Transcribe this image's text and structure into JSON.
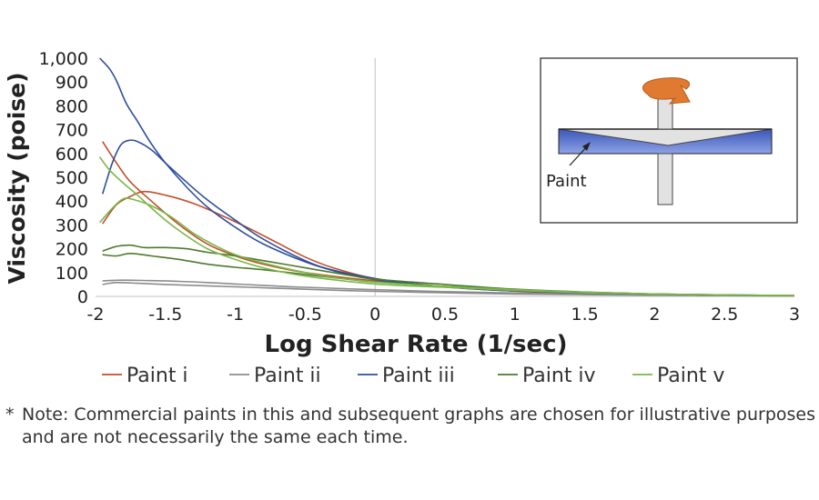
{
  "chart_data": {
    "type": "line",
    "title": "",
    "xlabel": "Log Shear Rate (1/sec)",
    "ylabel": "Viscosity (poise)",
    "xlim": [
      -2,
      3
    ],
    "ylim": [
      0,
      1000
    ],
    "x_ticks": [
      "-2",
      "-1.5",
      "-1",
      "-0.5",
      "0",
      "0.5",
      "1",
      "1.5",
      "2",
      "2.5",
      "3"
    ],
    "y_ticks": [
      "0",
      "100",
      "200",
      "300",
      "400",
      "500",
      "600",
      "700",
      "800",
      "900",
      "1,000"
    ],
    "grid": false,
    "legend_position": "bottom",
    "series": [
      {
        "name": "Paint i",
        "color": "#c0502a",
        "points": [
          [
            -1.95,
            650
          ],
          [
            -1.85,
            560
          ],
          [
            -1.75,
            480
          ],
          [
            -1.6,
            400
          ],
          [
            -1.4,
            300
          ],
          [
            -1.2,
            220
          ],
          [
            -1,
            170
          ],
          [
            -0.8,
            135
          ],
          [
            -0.5,
            100
          ],
          [
            0,
            65
          ],
          [
            0.5,
            40
          ],
          [
            1,
            22
          ],
          [
            1.5,
            12
          ],
          [
            2,
            7
          ],
          [
            2.5,
            4
          ],
          [
            3,
            2
          ]
        ]
      },
      {
        "name": "Paint i",
        "color": "#c0502a",
        "points": [
          [
            -1.95,
            305
          ],
          [
            -1.85,
            385
          ],
          [
            -1.75,
            420
          ],
          [
            -1.65,
            440
          ],
          [
            -1.5,
            425
          ],
          [
            -1.3,
            390
          ],
          [
            -1.1,
            340
          ],
          [
            -0.9,
            285
          ],
          [
            -0.7,
            225
          ],
          [
            -0.5,
            165
          ],
          [
            -0.3,
            120
          ],
          [
            0,
            75
          ],
          [
            0.5,
            40
          ],
          [
            1,
            22
          ],
          [
            1.5,
            12
          ],
          [
            2,
            7
          ],
          [
            2.5,
            4
          ],
          [
            3,
            2
          ]
        ]
      },
      {
        "name": "Paint ii",
        "color": "#8c8c8c",
        "points": [
          [
            -1.95,
            65
          ],
          [
            -1.8,
            68
          ],
          [
            -1.6,
            66
          ],
          [
            -1.4,
            63
          ],
          [
            -1.2,
            58
          ],
          [
            -1,
            52
          ],
          [
            -0.8,
            46
          ],
          [
            -0.5,
            38
          ],
          [
            0,
            28
          ],
          [
            0.5,
            20
          ],
          [
            1,
            14
          ],
          [
            1.5,
            9
          ],
          [
            2,
            6
          ],
          [
            2.5,
            4
          ],
          [
            3,
            2
          ]
        ]
      },
      {
        "name": "Paint ii",
        "color": "#8c8c8c",
        "points": [
          [
            -1.95,
            50
          ],
          [
            -1.85,
            58
          ],
          [
            -1.7,
            55
          ],
          [
            -1.5,
            50
          ],
          [
            -1.3,
            46
          ],
          [
            -1.1,
            42
          ],
          [
            -0.9,
            38
          ],
          [
            -0.6,
            32
          ],
          [
            -0.3,
            26
          ],
          [
            0,
            21
          ],
          [
            0.5,
            15
          ],
          [
            1,
            10
          ],
          [
            1.5,
            7
          ],
          [
            2,
            5
          ],
          [
            2.5,
            3
          ],
          [
            3,
            2
          ]
        ]
      },
      {
        "name": "Paint iii",
        "color": "#2f4f9e",
        "points": [
          [
            -1.97,
            1000
          ],
          [
            -1.9,
            955
          ],
          [
            -1.85,
            905
          ],
          [
            -1.78,
            810
          ],
          [
            -1.7,
            735
          ],
          [
            -1.6,
            640
          ],
          [
            -1.5,
            560
          ],
          [
            -1.35,
            460
          ],
          [
            -1.2,
            375
          ],
          [
            -1,
            290
          ],
          [
            -0.8,
            220
          ],
          [
            -0.5,
            145
          ],
          [
            -0.25,
            100
          ],
          [
            0,
            70
          ],
          [
            0.3,
            50
          ],
          [
            0.6,
            35
          ],
          [
            1,
            23
          ],
          [
            1.5,
            14
          ],
          [
            2,
            9
          ],
          [
            2.5,
            5
          ],
          [
            3,
            3
          ]
        ]
      },
      {
        "name": "Paint iii",
        "color": "#2f4f9e",
        "points": [
          [
            -1.95,
            430
          ],
          [
            -1.88,
            560
          ],
          [
            -1.82,
            635
          ],
          [
            -1.76,
            655
          ],
          [
            -1.7,
            650
          ],
          [
            -1.6,
            615
          ],
          [
            -1.5,
            560
          ],
          [
            -1.35,
            480
          ],
          [
            -1.2,
            405
          ],
          [
            -1,
            320
          ],
          [
            -0.8,
            240
          ],
          [
            -0.5,
            150
          ],
          [
            -0.3,
            110
          ],
          [
            0,
            75
          ],
          [
            0.3,
            52
          ],
          [
            0.6,
            36
          ],
          [
            1,
            24
          ],
          [
            1.5,
            15
          ],
          [
            2,
            9
          ],
          [
            2.5,
            5
          ],
          [
            3,
            3
          ]
        ]
      },
      {
        "name": "Paint iv",
        "color": "#4d7a2c",
        "points": [
          [
            -1.95,
            190
          ],
          [
            -1.85,
            210
          ],
          [
            -1.75,
            215
          ],
          [
            -1.65,
            205
          ],
          [
            -1.5,
            205
          ],
          [
            -1.35,
            200
          ],
          [
            -1.2,
            185
          ],
          [
            -1,
            170
          ],
          [
            -0.8,
            150
          ],
          [
            -0.5,
            120
          ],
          [
            -0.2,
            90
          ],
          [
            0,
            72
          ],
          [
            0.5,
            50
          ],
          [
            1,
            30
          ],
          [
            1.5,
            18
          ],
          [
            2,
            10
          ],
          [
            2.5,
            6
          ],
          [
            3,
            3
          ]
        ]
      },
      {
        "name": "Paint iv",
        "color": "#4d7a2c",
        "points": [
          [
            -1.95,
            175
          ],
          [
            -1.85,
            170
          ],
          [
            -1.75,
            180
          ],
          [
            -1.6,
            170
          ],
          [
            -1.4,
            155
          ],
          [
            -1.2,
            135
          ],
          [
            -1,
            122
          ],
          [
            -0.8,
            112
          ],
          [
            -0.5,
            92
          ],
          [
            -0.2,
            72
          ],
          [
            0,
            60
          ],
          [
            0.5,
            42
          ],
          [
            1,
            28
          ],
          [
            1.5,
            17
          ],
          [
            2,
            10
          ],
          [
            2.5,
            6
          ],
          [
            3,
            3
          ]
        ]
      },
      {
        "name": "Paint v",
        "color": "#7bb648",
        "points": [
          [
            -1.97,
            585
          ],
          [
            -1.9,
            530
          ],
          [
            -1.8,
            475
          ],
          [
            -1.7,
            425
          ],
          [
            -1.55,
            345
          ],
          [
            -1.4,
            275
          ],
          [
            -1.2,
            200
          ],
          [
            -1,
            155
          ],
          [
            -0.8,
            120
          ],
          [
            -0.5,
            85
          ],
          [
            0,
            52
          ],
          [
            0.5,
            38
          ],
          [
            1,
            25
          ],
          [
            1.5,
            15
          ],
          [
            2,
            9
          ],
          [
            2.5,
            5
          ],
          [
            3,
            3
          ]
        ]
      },
      {
        "name": "Paint v",
        "color": "#7bb648",
        "points": [
          [
            -1.97,
            310
          ],
          [
            -1.88,
            370
          ],
          [
            -1.8,
            410
          ],
          [
            -1.72,
            405
          ],
          [
            -1.6,
            380
          ],
          [
            -1.45,
            330
          ],
          [
            -1.3,
            265
          ],
          [
            -1.15,
            215
          ],
          [
            -1,
            175
          ],
          [
            -0.8,
            140
          ],
          [
            -0.5,
            100
          ],
          [
            -0.3,
            80
          ],
          [
            0,
            60
          ],
          [
            0.5,
            42
          ],
          [
            1,
            28
          ],
          [
            1.5,
            17
          ],
          [
            2,
            10
          ],
          [
            2.5,
            6
          ],
          [
            3,
            3
          ]
        ]
      }
    ],
    "legend": [
      {
        "name": "Paint i",
        "color": "#c0502a"
      },
      {
        "name": "Paint ii",
        "color": "#8c8c8c"
      },
      {
        "name": "Paint iii",
        "color": "#2f4f9e"
      },
      {
        "name": "Paint iv",
        "color": "#4d7a2c"
      },
      {
        "name": "Paint v",
        "color": "#7bb648"
      }
    ],
    "inset": {
      "label": "Paint"
    }
  },
  "note": {
    "marker": "*",
    "text": "Note: Commercial paints in this and subsequent graphs are chosen for illustrative purposes and are not necessarily the same each time."
  }
}
